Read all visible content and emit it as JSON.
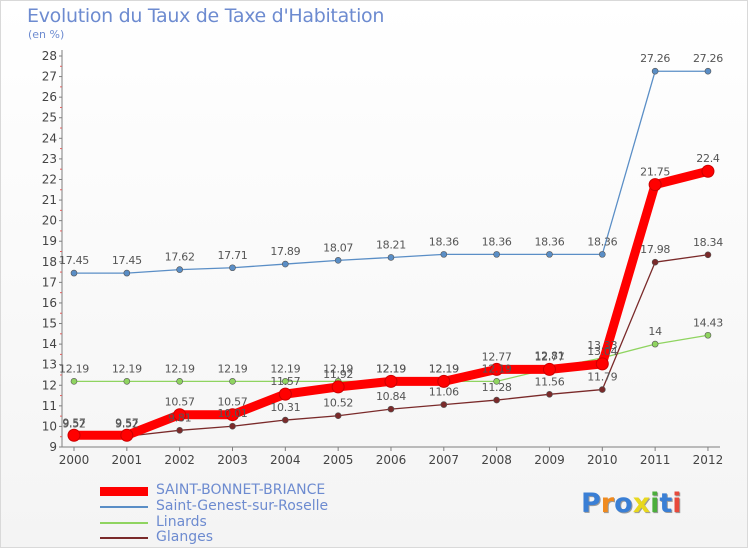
{
  "chart_data": {
    "type": "line",
    "title": "Evolution du Taux de Taxe d'Habitation",
    "unit_label": "(en %)",
    "x": [
      "2000",
      "2001",
      "2002",
      "2003",
      "2004",
      "2005",
      "2006",
      "2007",
      "2008",
      "2009",
      "2010",
      "2011",
      "2012"
    ],
    "ylim": [
      9,
      28
    ],
    "yticks": [
      9,
      10,
      11,
      12,
      13,
      14,
      15,
      16,
      17,
      18,
      19,
      20,
      21,
      22,
      23,
      24,
      25,
      26,
      27,
      28
    ],
    "grid": false,
    "legend_position": "bottom-left",
    "series": [
      {
        "name": "SAINT-BONNET-BRIANCE",
        "color": "#ff0000",
        "values": [
          9.57,
          9.57,
          10.57,
          10.57,
          11.57,
          11.92,
          12.19,
          12.19,
          12.77,
          12.77,
          13.04,
          21.75,
          22.4
        ]
      },
      {
        "name": "Saint-Genest-sur-Roselle",
        "color": "#5a8ec6",
        "values": [
          17.45,
          17.45,
          17.62,
          17.71,
          17.89,
          18.07,
          18.21,
          18.36,
          18.36,
          18.36,
          18.36,
          27.26,
          27.26
        ]
      },
      {
        "name": "Linards",
        "color": "#8fd460",
        "values": [
          12.19,
          12.19,
          12.19,
          12.19,
          12.19,
          12.19,
          12.19,
          12.19,
          12.19,
          12.81,
          13.33,
          14,
          14.43
        ]
      },
      {
        "name": "Glanges",
        "color": "#7a2a2a",
        "values": [
          9.52,
          9.52,
          9.81,
          10.01,
          10.31,
          10.52,
          10.84,
          11.06,
          11.28,
          11.56,
          11.79,
          17.98,
          18.34
        ]
      }
    ]
  },
  "logo": {
    "letters": [
      "P",
      "r",
      "o",
      "x",
      "i",
      "t",
      "i"
    ],
    "colors": [
      "#3a7fd5",
      "#f08a1e",
      "#3a7fd5",
      "#e8d81e",
      "#4cae3c",
      "#3a7fd5",
      "#e84a3c"
    ]
  }
}
